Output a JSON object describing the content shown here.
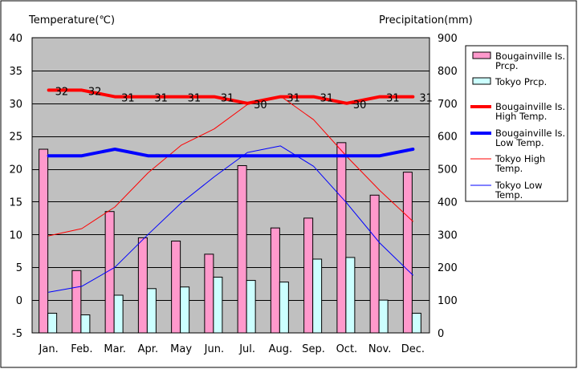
{
  "chart_data": {
    "type": "bar",
    "left_axis_title": "Temperature(℃)",
    "right_axis_title": "Precipitation(mm)",
    "categories": [
      "Jan.",
      "Feb.",
      "Mar.",
      "Apr.",
      "May",
      "Jun.",
      "Jul.",
      "Aug.",
      "Sep.",
      "Oct.",
      "Nov.",
      "Dec."
    ],
    "y_left": {
      "min": -5,
      "max": 40,
      "ticks": [
        -5,
        0,
        5,
        10,
        15,
        20,
        25,
        30,
        35,
        40
      ]
    },
    "y_right": {
      "min": 0,
      "max": 900,
      "ticks": [
        0,
        100,
        200,
        300,
        400,
        500,
        600,
        700,
        800,
        900
      ]
    },
    "grid": true,
    "legend_position": "right",
    "colors": {
      "plot_bg": "#c0c0c0",
      "grid": "#000000",
      "bougainville_prcp": "#ff99cc",
      "tokyo_prcp": "#ccffff",
      "bougainville_high": "#ff0000",
      "bougainville_low": "#0000ff",
      "tokyo_high": "#ff0000",
      "tokyo_low": "#0000ff"
    },
    "bar_series": [
      {
        "key": "bougainville_prcp",
        "name": "Bougainville Is. Prcp.",
        "axis": "right",
        "values": [
          560,
          190,
          370,
          290,
          280,
          240,
          510,
          320,
          350,
          580,
          420,
          490
        ]
      },
      {
        "key": "tokyo_prcp",
        "name": "Tokyo Prcp.",
        "axis": "right",
        "values": [
          60,
          55,
          115,
          135,
          140,
          170,
          160,
          155,
          225,
          230,
          100,
          60
        ]
      }
    ],
    "line_series": [
      {
        "key": "bougainville_high",
        "name": "Bougainville Is. High Temp.",
        "axis": "left",
        "width": 4,
        "values": [
          32,
          32,
          31,
          31,
          31,
          31,
          30,
          31,
          31,
          30,
          31,
          31
        ],
        "labels": [
          "32",
          "32",
          "31",
          "31",
          "31",
          "31",
          "30",
          "31",
          "31",
          "30",
          "31",
          "31"
        ]
      },
      {
        "key": "bougainville_low",
        "name": "Bougainville Is. Low Temp.",
        "axis": "left",
        "width": 4,
        "values": [
          22,
          22,
          23,
          22,
          22,
          22,
          22,
          22,
          22,
          22,
          22,
          23
        ]
      },
      {
        "key": "tokyo_high",
        "name": "Tokyo High Temp.",
        "axis": "left",
        "width": 1,
        "values": [
          9.8,
          10.9,
          14.2,
          19.4,
          23.6,
          26.1,
          29.8,
          31.1,
          27.5,
          21.9,
          16.7,
          12.0
        ]
      },
      {
        "key": "tokyo_low",
        "name": "Tokyo Low Temp.",
        "axis": "left",
        "width": 1,
        "values": [
          1.2,
          2.1,
          5.0,
          10.0,
          14.8,
          18.8,
          22.5,
          23.5,
          20.4,
          14.8,
          8.7,
          3.8
        ]
      }
    ],
    "legend": [
      {
        "key": "bougainville_prcp",
        "kind": "box",
        "lines": [
          "Bougainville Is.",
          "Prcp."
        ]
      },
      {
        "key": "tokyo_prcp",
        "kind": "box",
        "lines": [
          "Tokyo Prcp."
        ]
      },
      {
        "key": "bougainville_high",
        "kind": "line",
        "width": 4,
        "lines": [
          "Bougainville Is.",
          "High Temp."
        ]
      },
      {
        "key": "bougainville_low",
        "kind": "line",
        "width": 4,
        "lines": [
          "Bougainville Is.",
          "Low Temp."
        ]
      },
      {
        "key": "tokyo_high",
        "kind": "line",
        "width": 1,
        "lines": [
          "Tokyo High",
          "Temp."
        ]
      },
      {
        "key": "tokyo_low",
        "kind": "line",
        "width": 1,
        "lines": [
          "Tokyo Low",
          "Temp."
        ]
      }
    ]
  }
}
